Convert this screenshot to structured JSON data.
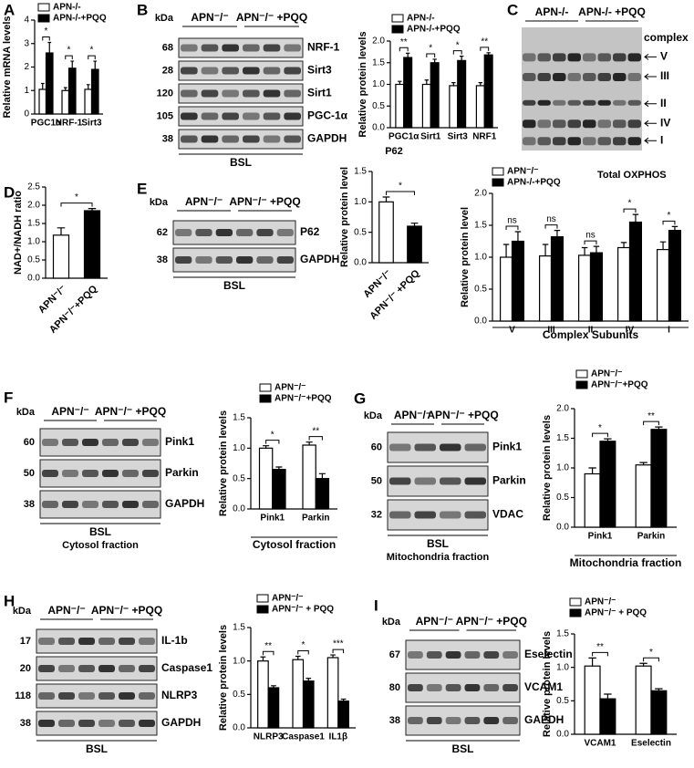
{
  "chart_data": [
    {
      "type": "bar",
      "panel": "A",
      "ylabel": "Relative mRNA levels",
      "categories": [
        "PGC1α",
        "NRF-1",
        "Sirt3"
      ],
      "series": [
        {
          "name": "APN-/-",
          "color": "#ffffff",
          "values": [
            1.05,
            1.0,
            1.05
          ],
          "errors": [
            0.25,
            0.12,
            0.2
          ]
        },
        {
          "name": "APN-/-+PQQ",
          "color": "#000000",
          "values": [
            2.6,
            1.95,
            1.9
          ],
          "errors": [
            0.45,
            0.3,
            0.35
          ]
        }
      ],
      "ylim": [
        0,
        4
      ],
      "yticks": [
        0,
        1,
        2,
        3,
        4
      ],
      "significance": [
        "*",
        "*",
        "*"
      ]
    },
    {
      "type": "bar",
      "ylabel": "Relative protein levels",
      "categories": [
        "PGC1α",
        "Sirt1",
        "Sirt3",
        "NRF1"
      ],
      "series": [
        {
          "name": "APN-/-",
          "color": "#ffffff",
          "values": [
            1.0,
            1.0,
            0.97,
            0.97
          ],
          "errors": [
            0.07,
            0.1,
            0.07,
            0.07
          ]
        },
        {
          "name": "APN-/-+PQQ",
          "color": "#000000",
          "values": [
            1.62,
            1.5,
            1.55,
            1.68
          ],
          "errors": [
            0.1,
            0.08,
            0.1,
            0.05
          ]
        }
      ],
      "ylim": [
        0,
        2
      ],
      "yticks": [
        {
          "value": 0,
          "label": "0.0"
        },
        0.5,
        {
          "value": 1,
          "label": "1.0"
        },
        1.5,
        {
          "value": 2,
          "label": "2.0"
        }
      ],
      "significance": [
        "**",
        "*",
        "*",
        "**"
      ]
    },
    {
      "type": "bar",
      "panel": "D",
      "ylabel": "NAD+/NADH ratio",
      "categories": [
        "APN⁻/⁻",
        "APN⁻/⁻+PQQ"
      ],
      "values": [
        1.18,
        1.85
      ],
      "errors": [
        0.2,
        0.06
      ],
      "colors": [
        "#ffffff",
        "#000000"
      ],
      "ylim": [
        0,
        2.5
      ],
      "yticks": [
        {
          "value": 0,
          "label": "0.0"
        },
        0.5,
        {
          "value": 1,
          "label": "1.0"
        },
        1.5,
        {
          "value": 2,
          "label": "2.0"
        },
        2.5
      ],
      "significance": [
        "*"
      ]
    },
    {
      "type": "bar",
      "title": "P62",
      "ylabel": "Relative protein level",
      "categories": [
        "APN⁻/⁻",
        "APN⁻/⁻ +PQQ"
      ],
      "values": [
        1.0,
        0.6
      ],
      "errors": [
        0.08,
        0.05
      ],
      "colors": [
        "#ffffff",
        "#000000"
      ],
      "ylim": [
        0,
        1.5
      ],
      "yticks": [
        {
          "value": 0,
          "label": "0.0"
        },
        0.5,
        {
          "value": 1,
          "label": "1.0"
        },
        1.5
      ],
      "significance": [
        "*"
      ]
    },
    {
      "type": "bar",
      "title": "Total OXPHOS",
      "ylabel": "Relative protein level",
      "xlabel": "Complex Subunits",
      "categories": [
        "V",
        "III",
        "II",
        "IV",
        "I"
      ],
      "series": [
        {
          "name": "APN⁻/⁻",
          "color": "#ffffff",
          "values": [
            1.0,
            1.02,
            1.03,
            1.15,
            1.12
          ],
          "errors": [
            0.2,
            0.18,
            0.12,
            0.08,
            0.12
          ]
        },
        {
          "name": "APN-/-+PQQ",
          "color": "#000000",
          "values": [
            1.25,
            1.32,
            1.07,
            1.55,
            1.42
          ],
          "errors": [
            0.15,
            0.1,
            0.1,
            0.12,
            0.06
          ]
        }
      ],
      "ylim": [
        0,
        2
      ],
      "yticks": [
        {
          "value": 0,
          "label": "0.0"
        },
        0.5,
        {
          "value": 1,
          "label": "1.0"
        },
        1.5,
        {
          "value": 2,
          "label": "2.0"
        }
      ],
      "significance": [
        "ns",
        "ns",
        "ns",
        "*",
        "*"
      ]
    },
    {
      "type": "bar",
      "ylabel": "Relative protein levels",
      "xlabel": "Cytosol fraction",
      "categories": [
        "Pink1",
        "Parkin"
      ],
      "series": [
        {
          "name": "APN⁻/⁻",
          "color": "#ffffff",
          "values": [
            1.0,
            1.05
          ],
          "errors": [
            0.04,
            0.05
          ]
        },
        {
          "name": "APN⁻/⁻+PQQ",
          "color": "#000000",
          "values": [
            0.65,
            0.5
          ],
          "errors": [
            0.04,
            0.08
          ]
        }
      ],
      "ylim": [
        0,
        1.5
      ],
      "yticks": [
        {
          "value": 0,
          "label": "0.0"
        },
        0.5,
        {
          "value": 1,
          "label": "1.0"
        },
        1.5
      ],
      "significance": [
        "*",
        "**"
      ]
    },
    {
      "type": "bar",
      "ylabel": "Relative protein levels",
      "xlabel": "Mitochondria fraction",
      "categories": [
        "Pink1",
        "Parkin"
      ],
      "series": [
        {
          "name": "APN⁻/⁻",
          "color": "#ffffff",
          "values": [
            0.9,
            1.05
          ],
          "errors": [
            0.1,
            0.04
          ]
        },
        {
          "name": "APN⁻/⁻+PQQ",
          "color": "#000000",
          "values": [
            1.45,
            1.65
          ],
          "errors": [
            0.04,
            0.04
          ]
        }
      ],
      "ylim": [
        0,
        2
      ],
      "yticks": [
        {
          "value": 0,
          "label": "0.0"
        },
        0.5,
        {
          "value": 1,
          "label": "1.0"
        },
        1.5,
        {
          "value": 2,
          "label": "2.0"
        }
      ],
      "significance": [
        "*",
        "**"
      ]
    },
    {
      "type": "bar",
      "ylabel": "Relative protein levels",
      "categories": [
        "NLRP3",
        "Caspase1",
        "IL1β"
      ],
      "series": [
        {
          "name": "APN⁻/⁻",
          "color": "#ffffff",
          "values": [
            1.0,
            1.02,
            1.05
          ],
          "errors": [
            0.06,
            0.05,
            0.04
          ]
        },
        {
          "name": "APN⁻/⁻ + PQQ",
          "color": "#000000",
          "values": [
            0.6,
            0.7,
            0.4
          ],
          "errors": [
            0.03,
            0.04,
            0.03
          ]
        }
      ],
      "ylim": [
        0,
        1.5
      ],
      "yticks": [
        {
          "value": 0,
          "label": "0.0"
        },
        0.5,
        {
          "value": 1,
          "label": "1.0"
        },
        1.5
      ],
      "significance": [
        "**",
        "*",
        "***"
      ]
    },
    {
      "type": "bar",
      "ylabel": "Relative protein levels",
      "categories": [
        "VCAM1",
        "Eselectin"
      ],
      "series": [
        {
          "name": "APN⁻/⁻",
          "color": "#ffffff",
          "values": [
            1.02,
            1.02
          ],
          "errors": [
            0.12,
            0.04
          ]
        },
        {
          "name": "APN⁻/⁻ + PQQ",
          "color": "#000000",
          "values": [
            0.53,
            0.65
          ],
          "errors": [
            0.07,
            0.03
          ]
        }
      ],
      "ylim": [
        0,
        1.5
      ],
      "yticks": [
        {
          "value": 0,
          "label": "0.0"
        },
        0.5,
        {
          "value": 1,
          "label": "1.0"
        },
        1.5
      ],
      "significance": [
        "**",
        "*"
      ]
    }
  ],
  "blots": [
    {
      "panel": "B",
      "kda_label": "kDa",
      "groups": [
        "APN⁻/⁻",
        "APN⁻/⁻ +PQQ"
      ],
      "rows": [
        {
          "kda": "68",
          "name": "NRF-1"
        },
        {
          "kda": "28",
          "name": "Sirt3"
        },
        {
          "kda": "120",
          "name": "Sirt1"
        },
        {
          "kda": "105",
          "name": "PGC-1α"
        },
        {
          "kda": "38",
          "name": "GAPDH"
        }
      ],
      "footer": "BSL"
    },
    {
      "panel": "C",
      "groups": [
        "APN-/-",
        "APN-/- +PQQ"
      ],
      "labels": [
        "complex",
        "V",
        "III",
        "II",
        "IV",
        "I"
      ]
    },
    {
      "panel": "E",
      "kda_label": "kDa",
      "groups": [
        "APN⁻/⁻",
        "APN⁻/⁻ +PQQ"
      ],
      "rows": [
        {
          "kda": "62",
          "name": "P62"
        },
        {
          "kda": "38",
          "name": "GAPDH"
        }
      ],
      "footer": "BSL"
    },
    {
      "panel": "F",
      "kda_label": "kDa",
      "groups": [
        "APN⁻/⁻",
        "APN⁻/⁻ +PQQ"
      ],
      "rows": [
        {
          "kda": "60",
          "name": "Pink1"
        },
        {
          "kda": "50",
          "name": "Parkin"
        },
        {
          "kda": "38",
          "name": "GAPDH"
        }
      ],
      "footer": "BSL",
      "caption": "Cytosol fraction"
    },
    {
      "panel": "G",
      "kda_label": "kDa",
      "groups": [
        "APN⁻/⁻",
        "APN⁻/⁻ +PQQ"
      ],
      "rows": [
        {
          "kda": "60",
          "name": "Pink1"
        },
        {
          "kda": "50",
          "name": "Parkin"
        },
        {
          "kda": "32",
          "name": "VDAC"
        }
      ],
      "footer": "BSL",
      "caption": "Mitochondria fraction"
    },
    {
      "panel": "H",
      "kda_label": "kDa",
      "groups": [
        "APN⁻/⁻",
        "APN⁻/⁻ +PQQ"
      ],
      "rows": [
        {
          "kda": "17",
          "name": "IL-1b"
        },
        {
          "kda": "20",
          "name": "Caspase1"
        },
        {
          "kda": "118",
          "name": "NLRP3"
        },
        {
          "kda": "38",
          "name": "GAPDH"
        }
      ],
      "footer": "BSL"
    },
    {
      "panel": "I",
      "kda_label": "kDa",
      "groups": [
        "APN⁻/⁻",
        "APN⁻/⁻ +PQQ"
      ],
      "rows": [
        {
          "kda": "67",
          "name": "Eselectin"
        },
        {
          "kda": "80",
          "name": "VCAM1"
        },
        {
          "kda": "38",
          "name": "GAPDH"
        }
      ],
      "footer": "BSL"
    }
  ]
}
